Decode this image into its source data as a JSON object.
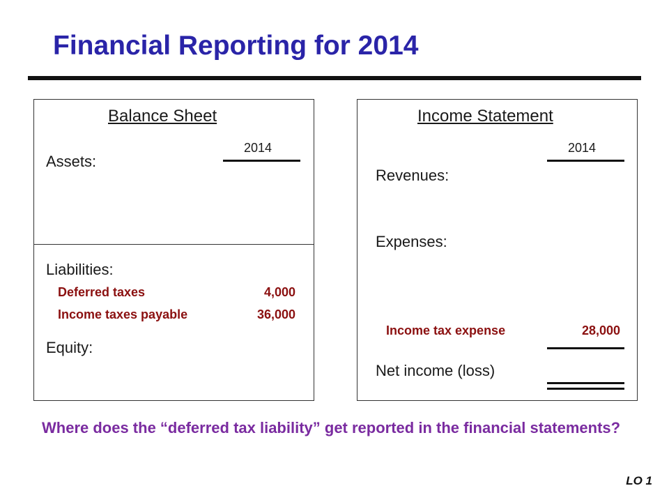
{
  "slide": {
    "title": "Financial Reporting for 2014",
    "question": "Where does the “deferred tax liability” get reported in the financial statements?",
    "lo_label": "LO 1"
  },
  "balance_sheet": {
    "heading": "Balance Sheet",
    "year": "2014",
    "assets_label": "Assets:",
    "liabilities_label": "Liabilities:",
    "equity_label": "Equity:",
    "items": [
      {
        "label": "Deferred taxes",
        "amount": "4,000"
      },
      {
        "label": "Income taxes payable",
        "amount": "36,000"
      }
    ]
  },
  "income_statement": {
    "heading": "Income Statement",
    "year": "2014",
    "revenues_label": "Revenues:",
    "expenses_label": "Expenses:",
    "tax_expense_label": "Income tax expense",
    "tax_expense_amount": "28,000",
    "net_income_label": "Net income (loss)"
  },
  "colors": {
    "title": "#2a24a8",
    "highlight": "#8b1010",
    "question": "#7a2ba0"
  }
}
